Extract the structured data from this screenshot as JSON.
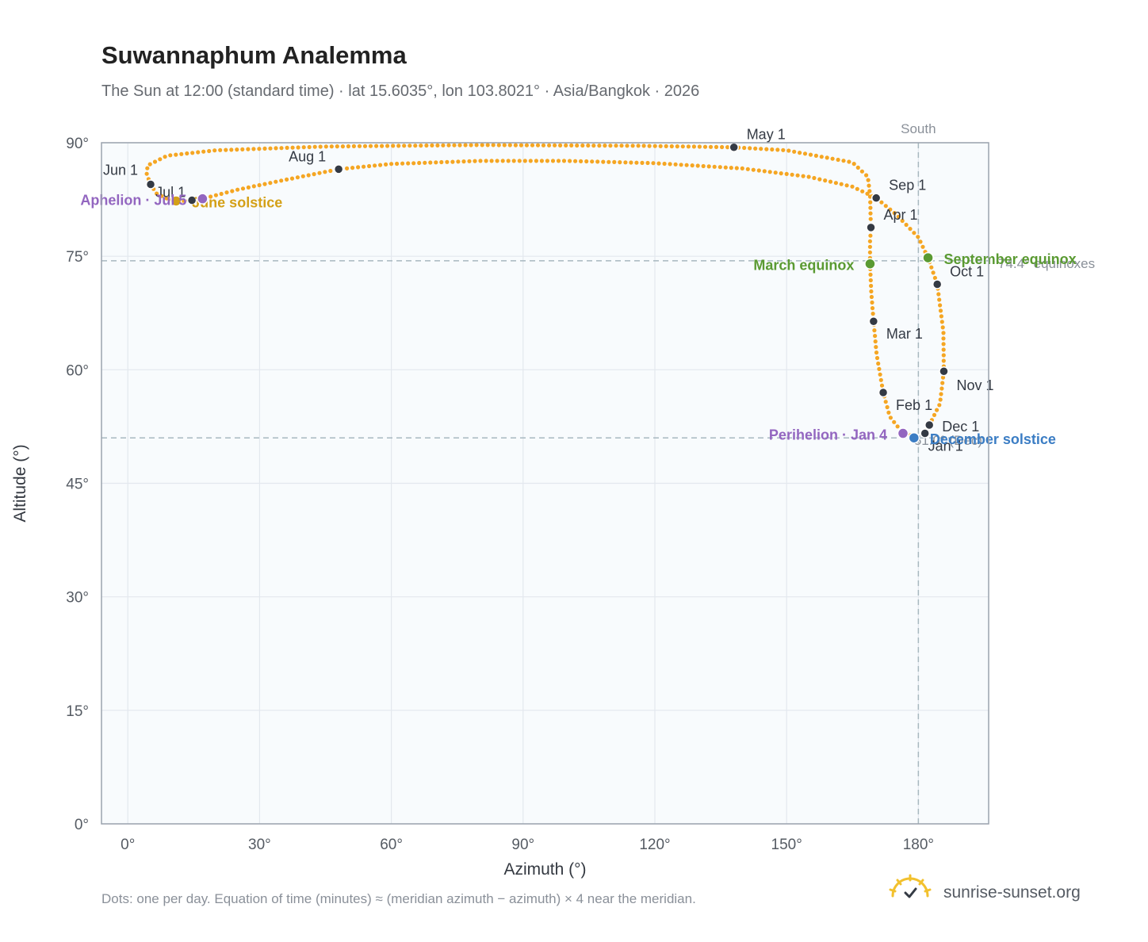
{
  "title": "Suwannaphum Analemma",
  "subtitle": "The Sun at 12:00 (standard time) · lat 15.6035°, lon 103.8021° · Asia/Bangkok · 2026",
  "footnote": "Dots: one per day. Equation of time (minutes) ≈ (meridian azimuth − azimuth) × 4 near the meridian.",
  "brand": {
    "name": "sunrise-sunset.org",
    "logo_icon": "sun-logo-icon"
  },
  "colors": {
    "path": "#f5a623",
    "month_marker": "#343a44",
    "equinox": "#5a9a32",
    "june_solstice": "#d4a017",
    "december_solstice": "#3b7dc4",
    "apsis": "#9366c0",
    "reference_line": "#a8b8c0",
    "plot_bg": "#f8fbfd",
    "grid": "#e3e8ee"
  },
  "chart_data": {
    "type": "scatter",
    "xlabel": "Azimuth (°)",
    "ylabel": "Altitude (°)",
    "xlim": [
      -6,
      196
    ],
    "ylim": [
      0,
      90
    ],
    "xticks": [
      0,
      30,
      60,
      90,
      120,
      150,
      180
    ],
    "yticks": [
      0,
      15,
      30,
      45,
      60,
      75,
      90
    ],
    "xtick_labels": [
      "0°",
      "30°",
      "60°",
      "90°",
      "120°",
      "150°",
      "180°"
    ],
    "ytick_labels": [
      "0°",
      "15°",
      "30°",
      "45°",
      "60°",
      "75°",
      "90°"
    ],
    "grid": true,
    "meridian": {
      "azimuth": 180,
      "label": "South"
    },
    "reference_lines": [
      {
        "altitude": 74.4,
        "label": "74.4° equinoxes"
      },
      {
        "altitude": 51,
        "label": "51.0° (Dec)"
      }
    ],
    "path_anchors": [
      [
        179.5,
        51.2
      ],
      [
        176.5,
        51.6
      ],
      [
        173.5,
        53.8
      ],
      [
        172,
        57
      ],
      [
        170.5,
        62
      ],
      [
        169.8,
        66.4
      ],
      [
        169.3,
        70
      ],
      [
        169,
        74
      ],
      [
        169,
        77
      ],
      [
        169.2,
        78.8
      ],
      [
        169,
        83
      ],
      [
        168.5,
        85.5
      ],
      [
        165,
        87.4
      ],
      [
        150,
        89
      ],
      [
        138,
        89.4
      ],
      [
        116,
        89.6
      ],
      [
        80,
        89.7
      ],
      [
        45,
        89.5
      ],
      [
        20,
        89
      ],
      [
        9,
        88.3
      ],
      [
        4.5,
        87
      ],
      [
        4.3,
        85.8
      ],
      [
        5.2,
        84.5
      ],
      [
        6.5,
        83.3
      ],
      [
        9,
        82.6
      ],
      [
        11,
        82.3
      ],
      [
        14.6,
        82.4
      ],
      [
        17,
        82.6
      ],
      [
        25,
        83.8
      ],
      [
        35,
        85
      ],
      [
        48,
        86.5
      ],
      [
        60,
        87.2
      ],
      [
        80,
        87.6
      ],
      [
        100,
        87.6
      ],
      [
        120,
        87.3
      ],
      [
        140,
        86.6
      ],
      [
        155,
        85.5
      ],
      [
        165,
        84.2
      ],
      [
        170.4,
        82.7
      ],
      [
        175,
        80.5
      ],
      [
        180,
        77.5
      ],
      [
        182.2,
        74.8
      ],
      [
        184.3,
        71.3
      ],
      [
        185.7,
        65
      ],
      [
        185.8,
        59.8
      ],
      [
        184.9,
        55.5
      ],
      [
        182.5,
        52.7
      ],
      [
        181.5,
        51.6
      ],
      [
        180.2,
        51.0
      ]
    ],
    "month_markers": [
      {
        "label": "Jan 1",
        "az": 181.5,
        "alt": 51.6
      },
      {
        "label": "Feb 1",
        "az": 172.0,
        "alt": 57.0
      },
      {
        "label": "Mar 1",
        "az": 169.8,
        "alt": 66.4
      },
      {
        "label": "Apr 1",
        "az": 169.2,
        "alt": 78.8
      },
      {
        "label": "May 1",
        "az": 138.0,
        "alt": 89.4
      },
      {
        "label": "Jun 1",
        "az": 5.2,
        "alt": 84.5
      },
      {
        "label": "Jul 1",
        "az": 14.6,
        "alt": 82.4
      },
      {
        "label": "Aug 1",
        "az": 48.0,
        "alt": 86.5
      },
      {
        "label": "Sep 1",
        "az": 170.4,
        "alt": 82.7
      },
      {
        "label": "Oct 1",
        "az": 184.3,
        "alt": 71.3
      },
      {
        "label": "Nov 1",
        "az": 185.8,
        "alt": 59.8
      },
      {
        "label": "Dec 1",
        "az": 182.5,
        "alt": 52.7
      }
    ],
    "events": [
      {
        "label": "March equinox",
        "az": 169.0,
        "alt": 74.0,
        "color_key": "equinox",
        "anchor": "end"
      },
      {
        "label": "September equinox",
        "az": 182.2,
        "alt": 74.8,
        "color_key": "equinox",
        "anchor": "start"
      },
      {
        "label": "June solstice",
        "az": 11.0,
        "alt": 82.3,
        "color_key": "june_solstice",
        "anchor": "start"
      },
      {
        "label": "December solstice",
        "az": 179.0,
        "alt": 51.0,
        "color_key": "december_solstice",
        "anchor": "start"
      },
      {
        "label": "Perihelion · Jan 4",
        "az": 176.5,
        "alt": 51.6,
        "color_key": "apsis",
        "anchor": "end"
      },
      {
        "label": "Aphelion · Jul 5",
        "az": 17.0,
        "alt": 82.6,
        "color_key": "apsis",
        "anchor": "end"
      }
    ]
  }
}
